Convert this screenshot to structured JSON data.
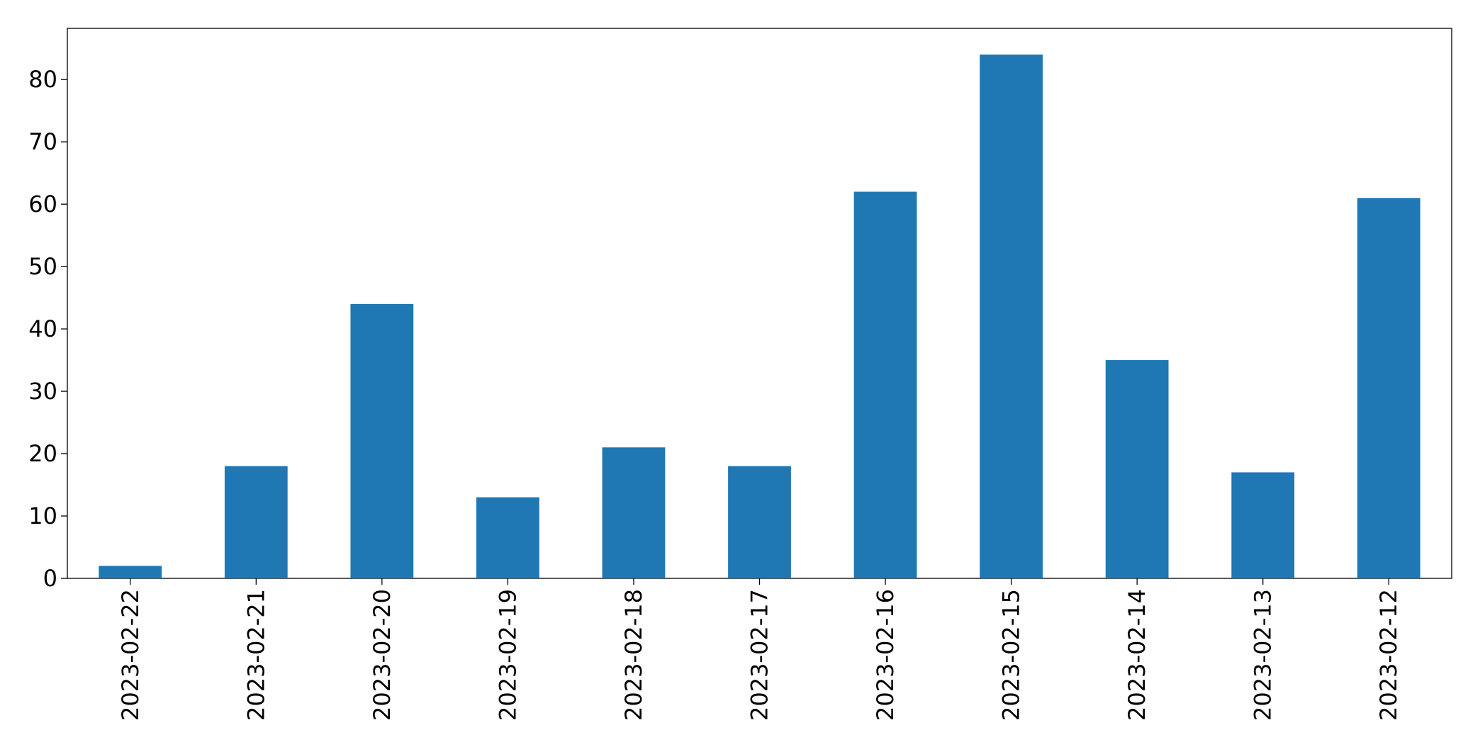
{
  "chart_data": {
    "type": "bar",
    "categories": [
      "2023-02-22",
      "2023-02-21",
      "2023-02-20",
      "2023-02-19",
      "2023-02-18",
      "2023-02-17",
      "2023-02-16",
      "2023-02-15",
      "2023-02-14",
      "2023-02-13",
      "2023-02-12"
    ],
    "values": [
      2,
      18,
      44,
      13,
      21,
      18,
      62,
      84,
      35,
      17,
      61
    ],
    "color": "#1f77b4",
    "ylim": [
      0,
      88.2
    ],
    "yticks": [
      0,
      10,
      20,
      30,
      40,
      50,
      60,
      70,
      80
    ],
    "grid": false
  }
}
